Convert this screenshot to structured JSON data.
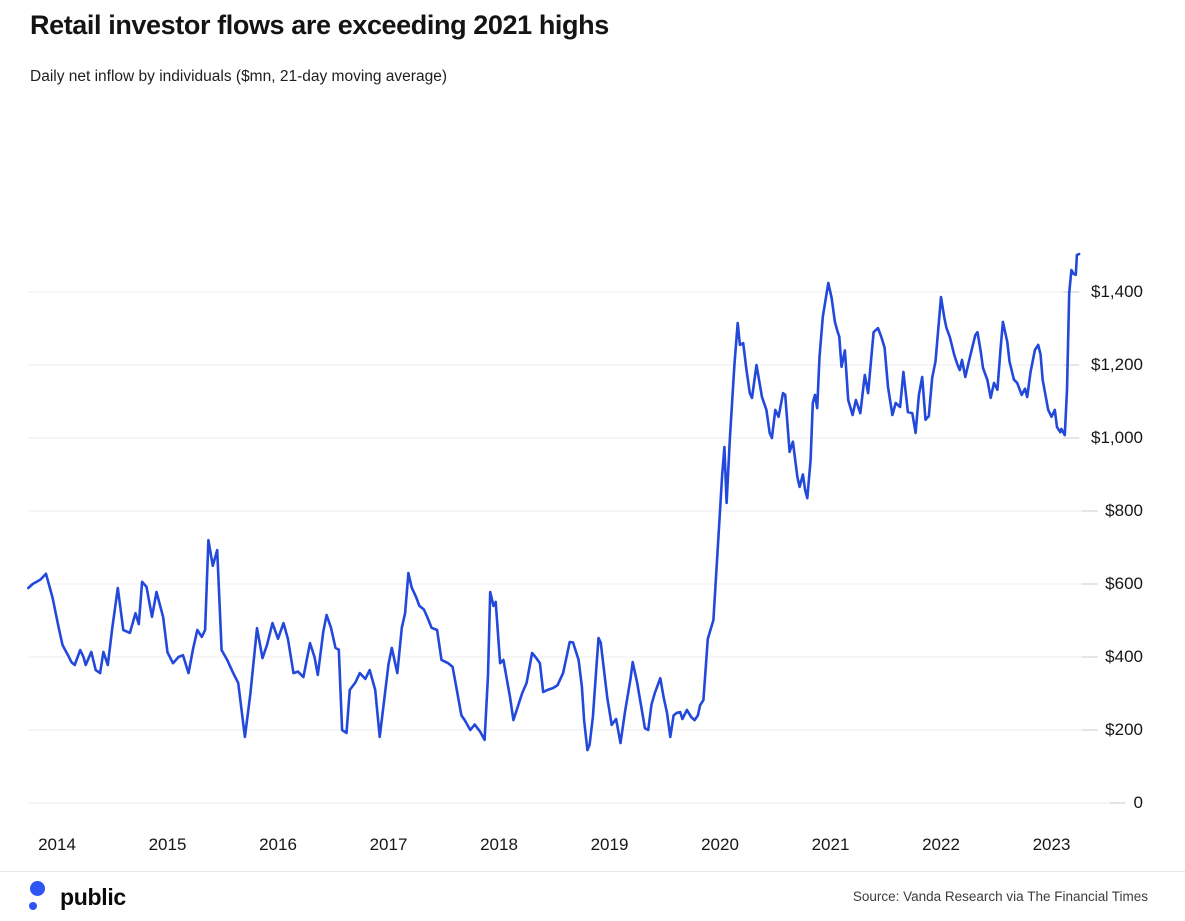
{
  "header": {
    "title": "Retail investor flows are exceeding 2021 highs",
    "subtitle": "Daily net inflow by individuals ($mn, 21-day moving average)"
  },
  "footer": {
    "logo_text": "public",
    "source": "Source: Vanda Research via The Financial Times"
  },
  "colors": {
    "line": "#2348dc",
    "logo_blue": "#2e55f2",
    "gridline": "#ededf2",
    "grid_tick": "#d5d5dc"
  },
  "chart_data": {
    "type": "line",
    "title": "Retail investor flows are exceeding 2021 highs",
    "subtitle": "Daily net inflow by individuals ($mn, 21-day moving average)",
    "unit": "$mn",
    "legend": "none",
    "grid": "horizontal",
    "x_axis": {
      "tick_labels": [
        "2014",
        "2015",
        "2016",
        "2017",
        "2018",
        "2019",
        "2020",
        "2021",
        "2022",
        "2023"
      ],
      "range_years": [
        2013.74,
        2023.3
      ]
    },
    "y_axis": {
      "tick_values": [
        0,
        200,
        400,
        600,
        800,
        1000,
        1200,
        1400
      ],
      "tick_labels": [
        "0",
        "$200",
        "$400",
        "$600",
        "$800",
        "$1,000",
        "$1,200",
        "$1,400"
      ],
      "range": [
        0,
        1520
      ],
      "label_side": "right"
    },
    "series": [
      {
        "name": "Daily net inflow, 21-day moving average ($mn)",
        "points": [
          [
            2013.74,
            589
          ],
          [
            2013.78,
            600
          ],
          [
            2013.85,
            612
          ],
          [
            2013.9,
            628
          ],
          [
            2013.96,
            562
          ],
          [
            2014.01,
            488
          ],
          [
            2014.05,
            433
          ],
          [
            2014.1,
            405
          ],
          [
            2014.13,
            386
          ],
          [
            2014.16,
            378
          ],
          [
            2014.21,
            419
          ],
          [
            2014.24,
            400
          ],
          [
            2014.26,
            378
          ],
          [
            2014.31,
            414
          ],
          [
            2014.35,
            364
          ],
          [
            2014.39,
            356
          ],
          [
            2014.42,
            414
          ],
          [
            2014.46,
            378
          ],
          [
            2014.5,
            480
          ],
          [
            2014.55,
            589
          ],
          [
            2014.6,
            474
          ],
          [
            2014.66,
            466
          ],
          [
            2014.71,
            520
          ],
          [
            2014.74,
            490
          ],
          [
            2014.77,
            606
          ],
          [
            2014.81,
            592
          ],
          [
            2014.86,
            510
          ],
          [
            2014.9,
            578
          ],
          [
            2014.96,
            510
          ],
          [
            2015.0,
            413
          ],
          [
            2015.05,
            383
          ],
          [
            2015.1,
            400
          ],
          [
            2015.14,
            405
          ],
          [
            2015.19,
            356
          ],
          [
            2015.23,
            420
          ],
          [
            2015.27,
            474
          ],
          [
            2015.31,
            455
          ],
          [
            2015.34,
            474
          ],
          [
            2015.37,
            720
          ],
          [
            2015.41,
            650
          ],
          [
            2015.45,
            693
          ],
          [
            2015.49,
            419
          ],
          [
            2015.54,
            392
          ],
          [
            2015.59,
            359
          ],
          [
            2015.64,
            329
          ],
          [
            2015.7,
            181
          ],
          [
            2015.75,
            300
          ],
          [
            2015.81,
            479
          ],
          [
            2015.86,
            397
          ],
          [
            2015.9,
            433
          ],
          [
            2015.95,
            493
          ],
          [
            2016.0,
            450
          ],
          [
            2016.05,
            493
          ],
          [
            2016.09,
            450
          ],
          [
            2016.14,
            356
          ],
          [
            2016.18,
            360
          ],
          [
            2016.23,
            345
          ],
          [
            2016.29,
            438
          ],
          [
            2016.33,
            400
          ],
          [
            2016.36,
            351
          ],
          [
            2016.41,
            470
          ],
          [
            2016.44,
            515
          ],
          [
            2016.48,
            480
          ],
          [
            2016.52,
            425
          ],
          [
            2016.55,
            420
          ],
          [
            2016.58,
            200
          ],
          [
            2016.62,
            192
          ],
          [
            2016.65,
            310
          ],
          [
            2016.7,
            330
          ],
          [
            2016.74,
            356
          ],
          [
            2016.79,
            340
          ],
          [
            2016.83,
            364
          ],
          [
            2016.88,
            310
          ],
          [
            2016.92,
            181
          ],
          [
            2016.96,
            280
          ],
          [
            2017.0,
            380
          ],
          [
            2017.03,
            425
          ],
          [
            2017.08,
            356
          ],
          [
            2017.12,
            480
          ],
          [
            2017.15,
            520
          ],
          [
            2017.18,
            630
          ],
          [
            2017.21,
            590
          ],
          [
            2017.25,
            564
          ],
          [
            2017.28,
            540
          ],
          [
            2017.32,
            530
          ],
          [
            2017.35,
            510
          ],
          [
            2017.39,
            480
          ],
          [
            2017.44,
            474
          ],
          [
            2017.48,
            392
          ],
          [
            2017.54,
            383
          ],
          [
            2017.58,
            373
          ],
          [
            2017.63,
            290
          ],
          [
            2017.66,
            240
          ],
          [
            2017.69,
            227
          ],
          [
            2017.74,
            200
          ],
          [
            2017.78,
            215
          ],
          [
            2017.83,
            195
          ],
          [
            2017.87,
            173
          ],
          [
            2017.9,
            350
          ],
          [
            2017.92,
            578
          ],
          [
            2017.95,
            540
          ],
          [
            2017.97,
            551
          ],
          [
            2018.01,
            383
          ],
          [
            2018.04,
            392
          ],
          [
            2018.1,
            290
          ],
          [
            2018.13,
            227
          ],
          [
            2018.21,
            301
          ],
          [
            2018.25,
            329
          ],
          [
            2018.3,
            411
          ],
          [
            2018.33,
            400
          ],
          [
            2018.37,
            383
          ],
          [
            2018.4,
            304
          ],
          [
            2018.44,
            310
          ],
          [
            2018.49,
            315
          ],
          [
            2018.53,
            323
          ],
          [
            2018.58,
            356
          ],
          [
            2018.64,
            441
          ],
          [
            2018.67,
            440
          ],
          [
            2018.72,
            392
          ],
          [
            2018.75,
            318
          ],
          [
            2018.77,
            227
          ],
          [
            2018.8,
            145
          ],
          [
            2018.82,
            160
          ],
          [
            2018.85,
            236
          ],
          [
            2018.88,
            364
          ],
          [
            2018.9,
            452
          ],
          [
            2018.92,
            440
          ],
          [
            2018.98,
            288
          ],
          [
            2019.02,
            214
          ],
          [
            2019.06,
            230
          ],
          [
            2019.1,
            164
          ],
          [
            2019.14,
            250
          ],
          [
            2019.19,
            340
          ],
          [
            2019.21,
            386
          ],
          [
            2019.25,
            330
          ],
          [
            2019.29,
            260
          ],
          [
            2019.32,
            205
          ],
          [
            2019.35,
            200
          ],
          [
            2019.38,
            270
          ],
          [
            2019.41,
            301
          ],
          [
            2019.46,
            342
          ],
          [
            2019.49,
            290
          ],
          [
            2019.52,
            247
          ],
          [
            2019.55,
            181
          ],
          [
            2019.58,
            240
          ],
          [
            2019.61,
            247
          ],
          [
            2019.64,
            249
          ],
          [
            2019.66,
            230
          ],
          [
            2019.7,
            255
          ],
          [
            2019.74,
            235
          ],
          [
            2019.77,
            227
          ],
          [
            2019.8,
            240
          ],
          [
            2019.82,
            268
          ],
          [
            2019.85,
            282
          ],
          [
            2019.89,
            450
          ],
          [
            2019.94,
            501
          ],
          [
            2019.98,
            700
          ],
          [
            2020.02,
            900
          ],
          [
            2020.04,
            975
          ],
          [
            2020.06,
            822
          ],
          [
            2020.09,
            1000
          ],
          [
            2020.13,
            1200
          ],
          [
            2020.16,
            1315
          ],
          [
            2020.18,
            1255
          ],
          [
            2020.21,
            1260
          ],
          [
            2020.24,
            1186
          ],
          [
            2020.27,
            1123
          ],
          [
            2020.29,
            1110
          ],
          [
            2020.33,
            1200
          ],
          [
            2020.38,
            1112
          ],
          [
            2020.42,
            1077
          ],
          [
            2020.45,
            1014
          ],
          [
            2020.47,
            1000
          ],
          [
            2020.5,
            1077
          ],
          [
            2020.53,
            1058
          ],
          [
            2020.57,
            1123
          ],
          [
            2020.59,
            1118
          ],
          [
            2020.63,
            962
          ],
          [
            2020.66,
            990
          ],
          [
            2020.7,
            893
          ],
          [
            2020.72,
            866
          ],
          [
            2020.75,
            900
          ],
          [
            2020.77,
            858
          ],
          [
            2020.79,
            835
          ],
          [
            2020.82,
            940
          ],
          [
            2020.84,
            1096
          ],
          [
            2020.86,
            1118
          ],
          [
            2020.88,
            1082
          ],
          [
            2020.9,
            1222
          ],
          [
            2020.93,
            1332
          ],
          [
            2020.98,
            1425
          ],
          [
            2021.01,
            1384
          ],
          [
            2021.04,
            1318
          ],
          [
            2021.06,
            1296
          ],
          [
            2021.08,
            1277
          ],
          [
            2021.1,
            1195
          ],
          [
            2021.13,
            1240
          ],
          [
            2021.16,
            1104
          ],
          [
            2021.2,
            1063
          ],
          [
            2021.23,
            1104
          ],
          [
            2021.27,
            1068
          ],
          [
            2021.31,
            1173
          ],
          [
            2021.34,
            1123
          ],
          [
            2021.39,
            1290
          ],
          [
            2021.43,
            1301
          ],
          [
            2021.46,
            1277
          ],
          [
            2021.49,
            1247
          ],
          [
            2021.52,
            1140
          ],
          [
            2021.56,
            1063
          ],
          [
            2021.59,
            1096
          ],
          [
            2021.63,
            1085
          ],
          [
            2021.66,
            1181
          ],
          [
            2021.7,
            1071
          ],
          [
            2021.74,
            1068
          ],
          [
            2021.77,
            1014
          ],
          [
            2021.8,
            1118
          ],
          [
            2021.83,
            1167
          ],
          [
            2021.86,
            1050
          ],
          [
            2021.89,
            1060
          ],
          [
            2021.92,
            1165
          ],
          [
            2021.95,
            1210
          ],
          [
            2022.0,
            1386
          ],
          [
            2022.03,
            1330
          ],
          [
            2022.05,
            1301
          ],
          [
            2022.08,
            1277
          ],
          [
            2022.12,
            1227
          ],
          [
            2022.15,
            1200
          ],
          [
            2022.17,
            1186
          ],
          [
            2022.19,
            1214
          ],
          [
            2022.22,
            1167
          ],
          [
            2022.26,
            1219
          ],
          [
            2022.31,
            1282
          ],
          [
            2022.33,
            1290
          ],
          [
            2022.36,
            1236
          ],
          [
            2022.38,
            1192
          ],
          [
            2022.42,
            1159
          ],
          [
            2022.45,
            1110
          ],
          [
            2022.48,
            1151
          ],
          [
            2022.51,
            1132
          ],
          [
            2022.54,
            1249
          ],
          [
            2022.56,
            1318
          ],
          [
            2022.6,
            1263
          ],
          [
            2022.62,
            1210
          ],
          [
            2022.66,
            1160
          ],
          [
            2022.69,
            1151
          ],
          [
            2022.73,
            1118
          ],
          [
            2022.76,
            1135
          ],
          [
            2022.78,
            1112
          ],
          [
            2022.81,
            1180
          ],
          [
            2022.85,
            1241
          ],
          [
            2022.88,
            1255
          ],
          [
            2022.9,
            1230
          ],
          [
            2022.92,
            1159
          ],
          [
            2022.97,
            1077
          ],
          [
            2023.0,
            1058
          ],
          [
            2023.03,
            1077
          ],
          [
            2023.05,
            1030
          ],
          [
            2023.08,
            1016
          ],
          [
            2023.09,
            1025
          ],
          [
            2023.12,
            1008
          ],
          [
            2023.14,
            1132
          ],
          [
            2023.16,
            1397
          ],
          [
            2023.18,
            1460
          ],
          [
            2023.2,
            1450
          ],
          [
            2023.22,
            1447
          ],
          [
            2023.23,
            1501
          ],
          [
            2023.25,
            1504
          ]
        ]
      }
    ],
    "source": "Source: Vanda Research via The Financial Times"
  }
}
